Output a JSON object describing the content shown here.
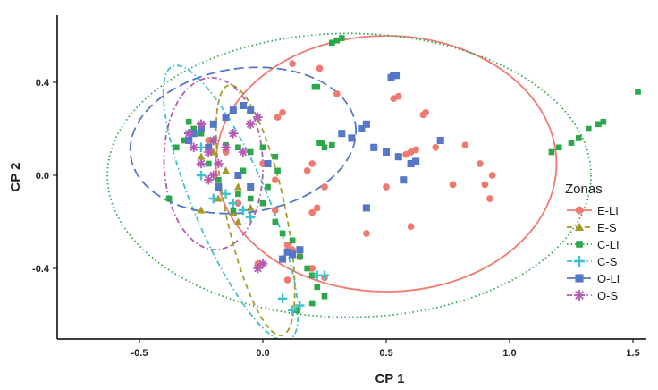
{
  "chart_data": {
    "type": "scatter",
    "xlabel": "CP 1",
    "ylabel": "CP 2",
    "xlim": [
      -0.83,
      1.57
    ],
    "ylim": [
      -0.7,
      0.68
    ],
    "x_ticks": [
      -0.5,
      0.0,
      0.5,
      1.0,
      1.5
    ],
    "x_tick_labels": [
      "-0.5",
      "0.0",
      "0.5",
      "1.0",
      "1.5"
    ],
    "y_ticks": [
      -0.4,
      0.0,
      0.4
    ],
    "y_tick_labels": [
      "-0.4",
      "0.0",
      "0.4"
    ],
    "grid": false,
    "legend": {
      "title": "Zonas",
      "placement": "right"
    },
    "series": [
      {
        "name": "E-LI",
        "color": "#F07A70",
        "marker": "circle",
        "line": "solid",
        "ellipse": {
          "cx": 0.5,
          "cy": 0.05,
          "rx": 0.69,
          "ry": 0.55,
          "angle": 0
        },
        "points": [
          [
            0.12,
            0.48
          ],
          [
            0.23,
            0.46
          ],
          [
            0.53,
            0.33
          ],
          [
            0.55,
            0.34
          ],
          [
            0.65,
            0.26
          ],
          [
            0.66,
            0.27
          ],
          [
            0.82,
            0.13
          ],
          [
            0.88,
            0.05
          ],
          [
            0.9,
            -0.04
          ],
          [
            0.93,
            0.0
          ],
          [
            0.6,
            0.1
          ],
          [
            0.58,
            0.09
          ],
          [
            0.62,
            0.11
          ],
          [
            0.7,
            0.12
          ],
          [
            0.77,
            -0.04
          ],
          [
            0.5,
            -0.05
          ],
          [
            0.42,
            -0.25
          ],
          [
            0.6,
            -0.22
          ],
          [
            0.2,
            -0.16
          ],
          [
            0.22,
            -0.14
          ],
          [
            0.2,
            0.05
          ],
          [
            0.06,
            0.25
          ],
          [
            0.08,
            0.27
          ],
          [
            0.05,
            -0.15
          ],
          [
            0.1,
            -0.3
          ],
          [
            0.12,
            -0.32
          ],
          [
            0.15,
            -0.35
          ],
          [
            0.2,
            -0.4
          ],
          [
            0.25,
            -0.44
          ],
          [
            0.1,
            -0.45
          ],
          [
            -0.02,
            -0.38
          ],
          [
            -0.1,
            0.0
          ],
          [
            -0.15,
            0.1
          ],
          [
            -0.05,
            -0.05
          ],
          [
            0.0,
            0.05
          ],
          [
            -0.22,
            0.15
          ],
          [
            -0.1,
            -0.12
          ],
          [
            0.25,
            -0.05
          ],
          [
            0.18,
            0.02
          ],
          [
            0.3,
            0.35
          ],
          [
            0.92,
            -0.1
          ],
          [
            0.05,
            -0.02
          ]
        ]
      },
      {
        "name": "E-S",
        "color": "#A49A24",
        "marker": "triangle",
        "line": "dashed",
        "ellipse": {
          "cx": -0.03,
          "cy": -0.15,
          "rx": 0.12,
          "ry": 0.55,
          "angle": -12
        },
        "points": [
          [
            -0.12,
            -0.16
          ],
          [
            -0.25,
            -0.15
          ],
          [
            -0.1,
            -0.2
          ],
          [
            -0.18,
            -0.1
          ],
          [
            -0.05,
            -0.14
          ],
          [
            -0.2,
            0.1
          ],
          [
            -0.25,
            0.08
          ],
          [
            -0.15,
            0.02
          ],
          [
            -0.1,
            -0.05
          ]
        ]
      },
      {
        "name": "C-LI",
        "color": "#2BA84A",
        "marker": "square",
        "line": "dotted",
        "ellipse": {
          "cx": 0.35,
          "cy": 0.0,
          "rx": 0.98,
          "ry": 0.61,
          "angle": 0
        },
        "points": [
          [
            0.28,
            0.57
          ],
          [
            0.3,
            0.58
          ],
          [
            0.32,
            0.59
          ],
          [
            1.17,
            0.1
          ],
          [
            1.2,
            0.12
          ],
          [
            1.25,
            0.14
          ],
          [
            1.28,
            0.16
          ],
          [
            1.32,
            0.2
          ],
          [
            1.36,
            0.22
          ],
          [
            1.38,
            0.23
          ],
          [
            1.52,
            0.36
          ],
          [
            0.21,
            0.38
          ],
          [
            0.22,
            0.38
          ],
          [
            0.23,
            0.14
          ],
          [
            0.24,
            0.14
          ],
          [
            0.28,
            0.13
          ],
          [
            0.25,
            0.12
          ],
          [
            -0.3,
            0.23
          ],
          [
            -0.28,
            0.2
          ],
          [
            -0.25,
            0.18
          ],
          [
            -0.2,
            0.15
          ],
          [
            -0.15,
            0.13
          ],
          [
            -0.1,
            0.12
          ],
          [
            -0.05,
            0.1
          ],
          [
            0.0,
            0.12
          ],
          [
            0.05,
            0.08
          ],
          [
            -0.32,
            0.15
          ],
          [
            -0.35,
            0.12
          ],
          [
            -0.22,
            0.05
          ],
          [
            -0.18,
            -0.02
          ],
          [
            -0.1,
            -0.08
          ],
          [
            -0.05,
            -0.1
          ],
          [
            0.0,
            -0.12
          ],
          [
            0.05,
            -0.2
          ],
          [
            0.08,
            -0.25
          ],
          [
            0.12,
            -0.28
          ],
          [
            0.15,
            -0.35
          ],
          [
            0.18,
            -0.4
          ],
          [
            0.2,
            -0.43
          ],
          [
            0.22,
            -0.48
          ],
          [
            0.25,
            -0.52
          ],
          [
            0.2,
            -0.55
          ],
          [
            0.14,
            -0.58
          ],
          [
            -0.38,
            -0.1
          ],
          [
            -0.12,
            -0.15
          ],
          [
            0.02,
            -0.05
          ],
          [
            0.06,
            0.02
          ],
          [
            -0.08,
            0.02
          ]
        ]
      },
      {
        "name": "C-S",
        "color": "#3CC1CD",
        "marker": "cross",
        "line": "dashdot",
        "ellipse": {
          "cx": -0.13,
          "cy": -0.12,
          "rx": 0.15,
          "ry": 0.64,
          "angle": -23
        },
        "points": [
          [
            -0.15,
            -0.08
          ],
          [
            -0.2,
            -0.1
          ],
          [
            -0.25,
            0.0
          ],
          [
            -0.08,
            -0.15
          ],
          [
            -0.05,
            -0.18
          ],
          [
            0.08,
            -0.53
          ],
          [
            0.12,
            -0.58
          ],
          [
            0.15,
            -0.56
          ],
          [
            0.22,
            -0.43
          ],
          [
            0.25,
            -0.43
          ],
          [
            -0.25,
            0.12
          ],
          [
            -0.3,
            0.18
          ],
          [
            -0.12,
            -0.12
          ]
        ]
      },
      {
        "name": "O-LI",
        "color": "#5577C8",
        "marker": "square-x",
        "line": "longdash",
        "ellipse": {
          "cx": -0.08,
          "cy": 0.15,
          "rx": 0.46,
          "ry": 0.31,
          "angle": -8
        },
        "points": [
          [
            0.52,
            0.42
          ],
          [
            0.53,
            0.43
          ],
          [
            0.54,
            0.43
          ],
          [
            0.32,
            0.18
          ],
          [
            0.36,
            0.16
          ],
          [
            0.4,
            0.2
          ],
          [
            0.42,
            0.22
          ],
          [
            0.45,
            0.12
          ],
          [
            0.5,
            0.1
          ],
          [
            0.55,
            0.08
          ],
          [
            0.6,
            0.05
          ],
          [
            0.62,
            0.06
          ],
          [
            0.72,
            0.15
          ],
          [
            0.57,
            -0.02
          ],
          [
            0.42,
            -0.14
          ],
          [
            0.1,
            -0.33
          ],
          [
            0.12,
            -0.34
          ],
          [
            0.15,
            -0.32
          ],
          [
            0.08,
            -0.36
          ],
          [
            -0.05,
            0.28
          ],
          [
            -0.08,
            0.3
          ],
          [
            -0.12,
            0.28
          ],
          [
            -0.15,
            0.25
          ],
          [
            -0.2,
            0.22
          ],
          [
            -0.25,
            0.2
          ],
          [
            -0.28,
            0.18
          ],
          [
            -0.3,
            0.15
          ],
          [
            -0.22,
            0.12
          ],
          [
            -0.1,
            0.0
          ],
          [
            -0.05,
            -0.05
          ],
          [
            0.02,
            0.05
          ],
          [
            -0.18,
            -0.05
          ]
        ]
      },
      {
        "name": "O-S",
        "color": "#B45AB4",
        "marker": "asterisk",
        "line": "dashdot",
        "ellipse": {
          "cx": -0.2,
          "cy": 0.05,
          "rx": 0.2,
          "ry": 0.37,
          "angle": -2
        },
        "points": [
          [
            -0.25,
            0.22
          ],
          [
            -0.2,
            0.15
          ],
          [
            -0.22,
            0.1
          ],
          [
            -0.18,
            0.05
          ],
          [
            -0.15,
            0.12
          ],
          [
            -0.12,
            0.18
          ],
          [
            -0.28,
            0.12
          ],
          [
            -0.25,
            0.05
          ],
          [
            -0.2,
            0.0
          ],
          [
            -0.22,
            -0.02
          ],
          [
            -0.05,
            0.22
          ],
          [
            -0.02,
            0.25
          ],
          [
            0.0,
            -0.38
          ],
          [
            -0.02,
            -0.4
          ],
          [
            -0.08,
            0.1
          ],
          [
            -0.3,
            0.18
          ]
        ]
      }
    ]
  }
}
